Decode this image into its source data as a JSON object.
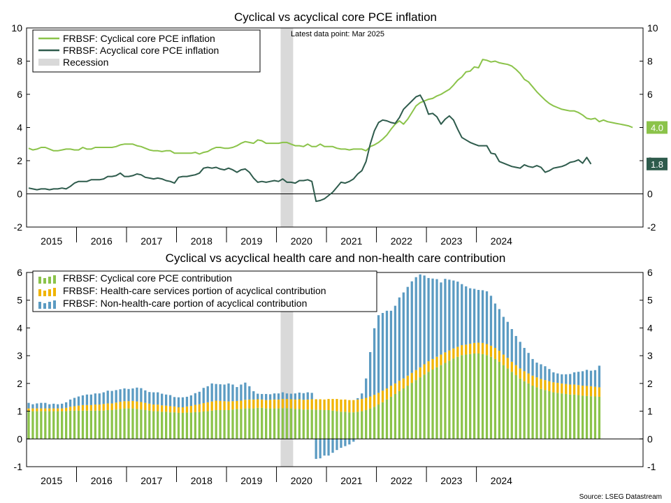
{
  "chart_data": [
    {
      "type": "line",
      "title": "Cyclical vs acyclical core PCE inflation",
      "annotation": "Latest data point: Mar 2025",
      "ylim": [
        -2,
        10
      ],
      "y_ticks": [
        -2,
        0,
        2,
        4,
        6,
        8,
        10
      ],
      "x_tick_labels": [
        "2015",
        "2016",
        "2017",
        "2018",
        "2019",
        "2020",
        "2021",
        "2022",
        "2023",
        "2024"
      ],
      "grid": false,
      "legend_position": "top-left",
      "recession": {
        "label": "Recession",
        "start": "2020-02",
        "end": "2020-04",
        "color": "#d9d9d9"
      },
      "x_start": "2015-01",
      "series": [
        {
          "name": "FRBSF: Cyclical core PCE inflation",
          "color": "#8bc34a",
          "end_label": "4.0",
          "values": [
            2.75,
            2.65,
            2.7,
            2.8,
            2.8,
            2.7,
            2.6,
            2.6,
            2.65,
            2.7,
            2.7,
            2.65,
            2.65,
            2.8,
            2.7,
            2.7,
            2.8,
            2.8,
            2.8,
            2.8,
            2.8,
            2.85,
            2.95,
            3.0,
            3.0,
            3.0,
            2.9,
            2.85,
            2.75,
            2.65,
            2.6,
            2.6,
            2.55,
            2.6,
            2.6,
            2.45,
            2.45,
            2.45,
            2.45,
            2.45,
            2.5,
            2.4,
            2.5,
            2.55,
            2.7,
            2.8,
            2.8,
            2.75,
            2.75,
            2.8,
            2.9,
            3.05,
            3.15,
            3.1,
            3.05,
            3.25,
            3.2,
            3.05,
            3.05,
            3.05,
            3.05,
            3.1,
            3.1,
            3.0,
            2.9,
            2.9,
            2.85,
            3.0,
            2.85,
            2.85,
            3.0,
            2.85,
            2.85,
            2.85,
            2.75,
            2.7,
            2.7,
            2.65,
            2.7,
            2.7,
            2.7,
            2.6,
            2.85,
            2.95,
            3.1,
            3.3,
            3.55,
            3.9,
            4.2,
            4.4,
            4.2,
            4.5,
            4.9,
            5.3,
            5.5,
            5.6,
            5.7,
            5.75,
            5.9,
            6.0,
            6.15,
            6.3,
            6.55,
            6.85,
            7.05,
            7.35,
            7.4,
            7.65,
            7.6,
            8.1,
            8.05,
            7.95,
            8.0,
            7.9,
            7.85,
            7.8,
            7.7,
            7.5,
            7.25,
            6.9,
            6.75,
            6.45,
            6.15,
            5.9,
            5.65,
            5.45,
            5.3,
            5.2,
            5.1,
            5.05,
            5.0,
            5.0,
            4.9,
            4.75,
            4.55,
            4.5,
            4.55,
            4.35,
            4.45,
            4.35,
            4.3,
            4.25,
            4.2,
            4.15,
            4.1,
            4.0
          ]
        },
        {
          "name": "FRBSF: Acyclical core PCE inflation",
          "color": "#2e5b4c",
          "end_label": "1.8",
          "values": [
            0.35,
            0.3,
            0.25,
            0.3,
            0.3,
            0.25,
            0.3,
            0.3,
            0.35,
            0.3,
            0.45,
            0.65,
            0.75,
            0.75,
            0.75,
            0.85,
            0.85,
            0.85,
            0.9,
            1.05,
            1.05,
            1.1,
            1.25,
            1.05,
            1.05,
            1.1,
            1.2,
            1.15,
            1.0,
            0.95,
            0.9,
            0.95,
            0.9,
            0.8,
            0.75,
            0.65,
            1.0,
            1.05,
            1.05,
            1.1,
            1.15,
            1.25,
            1.55,
            1.6,
            1.55,
            1.6,
            1.5,
            1.45,
            1.55,
            1.45,
            1.3,
            1.45,
            1.5,
            1.3,
            0.95,
            0.7,
            0.75,
            0.7,
            0.75,
            0.8,
            0.75,
            0.9,
            0.7,
            0.7,
            0.65,
            0.8,
            0.8,
            0.85,
            0.75,
            -0.45,
            -0.4,
            -0.3,
            -0.1,
            0.1,
            0.4,
            0.7,
            0.65,
            0.75,
            0.9,
            1.2,
            1.4,
            1.95,
            3.0,
            3.8,
            4.3,
            4.45,
            4.4,
            4.3,
            4.25,
            4.6,
            5.1,
            5.35,
            5.6,
            5.85,
            5.95,
            5.5,
            4.8,
            4.85,
            4.65,
            4.2,
            4.5,
            4.7,
            4.45,
            3.9,
            3.4,
            3.25,
            3.1,
            3.0,
            2.9,
            2.9,
            2.9,
            2.45,
            2.4,
            1.95,
            1.85,
            1.75,
            1.65,
            1.6,
            1.55,
            1.75,
            1.65,
            1.6,
            1.7,
            1.6,
            1.3,
            1.4,
            1.55,
            1.6,
            1.65,
            1.75,
            1.9,
            1.95,
            2.05,
            1.85,
            2.2,
            1.8
          ]
        }
      ]
    },
    {
      "type": "bar",
      "stacked": true,
      "title": "Cyclical vs acyclical health care and non-health care contribution",
      "ylim": [
        -1,
        6
      ],
      "y_ticks": [
        -1,
        0,
        1,
        2,
        3,
        4,
        5,
        6
      ],
      "x_tick_labels": [
        "2015",
        "2016",
        "2017",
        "2018",
        "2019",
        "2020",
        "2021",
        "2022",
        "2023",
        "2024"
      ],
      "grid": false,
      "legend_position": "top-left",
      "recession": {
        "start": "2020-02",
        "end": "2020-04",
        "color": "#d9d9d9"
      },
      "x_start": "2015-01",
      "series": [
        {
          "name": "FRBSF: Cyclical core PCE contribution",
          "color": "#8bc34a",
          "values": [
            1.0,
            1.0,
            1.0,
            1.0,
            1.0,
            1.0,
            1.0,
            1.0,
            1.0,
            1.0,
            1.02,
            1.02,
            1.02,
            1.02,
            1.02,
            1.02,
            1.02,
            1.02,
            1.02,
            1.04,
            1.04,
            1.06,
            1.08,
            1.1,
            1.1,
            1.1,
            1.08,
            1.06,
            1.04,
            1.02,
            1.0,
            1.0,
            0.98,
            0.98,
            0.96,
            0.96,
            0.94,
            0.94,
            0.95,
            0.95,
            0.97,
            0.97,
            0.99,
            1.0,
            1.02,
            1.04,
            1.04,
            1.04,
            1.04,
            1.06,
            1.08,
            1.08,
            1.1,
            1.1,
            1.1,
            1.12,
            1.12,
            1.1,
            1.1,
            1.1,
            1.1,
            1.11,
            1.11,
            1.1,
            1.08,
            1.08,
            1.06,
            1.06,
            1.06,
            1.05,
            1.05,
            1.04,
            1.04,
            1.02,
            1.0,
            0.98,
            0.98,
            0.96,
            0.96,
            0.98,
            1.0,
            1.04,
            1.1,
            1.16,
            1.24,
            1.32,
            1.42,
            1.52,
            1.62,
            1.72,
            1.82,
            1.92,
            2.02,
            2.12,
            2.22,
            2.32,
            2.42,
            2.5,
            2.58,
            2.66,
            2.74,
            2.82,
            2.9,
            2.96,
            3.02,
            3.04,
            3.06,
            3.08,
            3.08,
            3.06,
            3.02,
            2.96,
            2.88,
            2.78,
            2.66,
            2.54,
            2.42,
            2.3,
            2.18,
            2.08,
            2.0,
            1.92,
            1.86,
            1.8,
            1.76,
            1.72,
            1.68,
            1.66,
            1.64,
            1.62,
            1.6,
            1.6,
            1.58,
            1.56,
            1.55,
            1.54,
            1.53,
            1.52
          ]
        },
        {
          "name": "FRBSF: Health-care services portion of acyclical contribution",
          "color": "#f0b400",
          "values": [
            0.1,
            0.1,
            0.1,
            0.1,
            0.1,
            0.1,
            0.1,
            0.1,
            0.1,
            0.12,
            0.14,
            0.16,
            0.18,
            0.2,
            0.2,
            0.2,
            0.22,
            0.22,
            0.24,
            0.24,
            0.24,
            0.25,
            0.26,
            0.26,
            0.26,
            0.27,
            0.27,
            0.27,
            0.26,
            0.25,
            0.24,
            0.24,
            0.23,
            0.22,
            0.22,
            0.21,
            0.2,
            0.2,
            0.22,
            0.24,
            0.26,
            0.28,
            0.3,
            0.32,
            0.33,
            0.34,
            0.33,
            0.32,
            0.31,
            0.3,
            0.29,
            0.3,
            0.31,
            0.32,
            0.32,
            0.31,
            0.3,
            0.3,
            0.31,
            0.32,
            0.32,
            0.33,
            0.33,
            0.33,
            0.34,
            0.35,
            0.35,
            0.36,
            0.37,
            0.38,
            0.38,
            0.38,
            0.4,
            0.42,
            0.44,
            0.44,
            0.44,
            0.44,
            0.44,
            0.44,
            0.44,
            0.44,
            0.43,
            0.43,
            0.42,
            0.42,
            0.4,
            0.4,
            0.38,
            0.38,
            0.36,
            0.36,
            0.36,
            0.36,
            0.36,
            0.37,
            0.38,
            0.38,
            0.38,
            0.38,
            0.38,
            0.37,
            0.36,
            0.36,
            0.36,
            0.36,
            0.37,
            0.38,
            0.39,
            0.4,
            0.4,
            0.4,
            0.4,
            0.4,
            0.38,
            0.38,
            0.36,
            0.36,
            0.36,
            0.36,
            0.36,
            0.36,
            0.36,
            0.36,
            0.36,
            0.36,
            0.36,
            0.36,
            0.36,
            0.36,
            0.36,
            0.36,
            0.36,
            0.36,
            0.36,
            0.36,
            0.35,
            0.34
          ]
        },
        {
          "name": "FRBSF: Non-health-care portion of acyclical contribution",
          "color": "#5b9bc2",
          "values": [
            0.2,
            0.15,
            0.18,
            0.2,
            0.2,
            0.15,
            0.17,
            0.15,
            0.17,
            0.2,
            0.26,
            0.3,
            0.33,
            0.35,
            0.38,
            0.38,
            0.4,
            0.4,
            0.42,
            0.46,
            0.45,
            0.45,
            0.45,
            0.46,
            0.44,
            0.45,
            0.5,
            0.5,
            0.45,
            0.42,
            0.44,
            0.44,
            0.42,
            0.4,
            0.4,
            0.34,
            0.36,
            0.36,
            0.35,
            0.38,
            0.42,
            0.45,
            0.55,
            0.58,
            0.65,
            0.6,
            0.6,
            0.6,
            0.65,
            0.6,
            0.5,
            0.58,
            0.62,
            0.48,
            0.3,
            0.2,
            0.2,
            0.22,
            0.2,
            0.22,
            0.22,
            0.24,
            0.2,
            0.2,
            0.22,
            0.24,
            0.24,
            0.26,
            0.23,
            -0.72,
            -0.7,
            -0.6,
            -0.6,
            -0.5,
            -0.4,
            -0.32,
            -0.26,
            -0.2,
            -0.1,
            0.05,
            0.2,
            0.7,
            1.6,
            2.4,
            2.8,
            2.8,
            2.8,
            2.7,
            2.8,
            3.0,
            3.1,
            3.2,
            3.3,
            3.35,
            3.35,
            3.2,
            3.0,
            2.9,
            2.8,
            2.6,
            2.65,
            2.55,
            2.45,
            2.35,
            2.2,
            2.1,
            2.0,
            1.95,
            1.9,
            1.9,
            1.9,
            1.8,
            1.6,
            1.5,
            1.36,
            1.3,
            1.18,
            1.05,
            0.96,
            0.84,
            0.74,
            0.6,
            0.53,
            0.53,
            0.5,
            0.44,
            0.36,
            0.34,
            0.33,
            0.35,
            0.38,
            0.44,
            0.48,
            0.52,
            0.58,
            0.56,
            0.6,
            0.78,
            0.79
          ]
        }
      ]
    }
  ],
  "source": "Source: LSEG Datastream"
}
